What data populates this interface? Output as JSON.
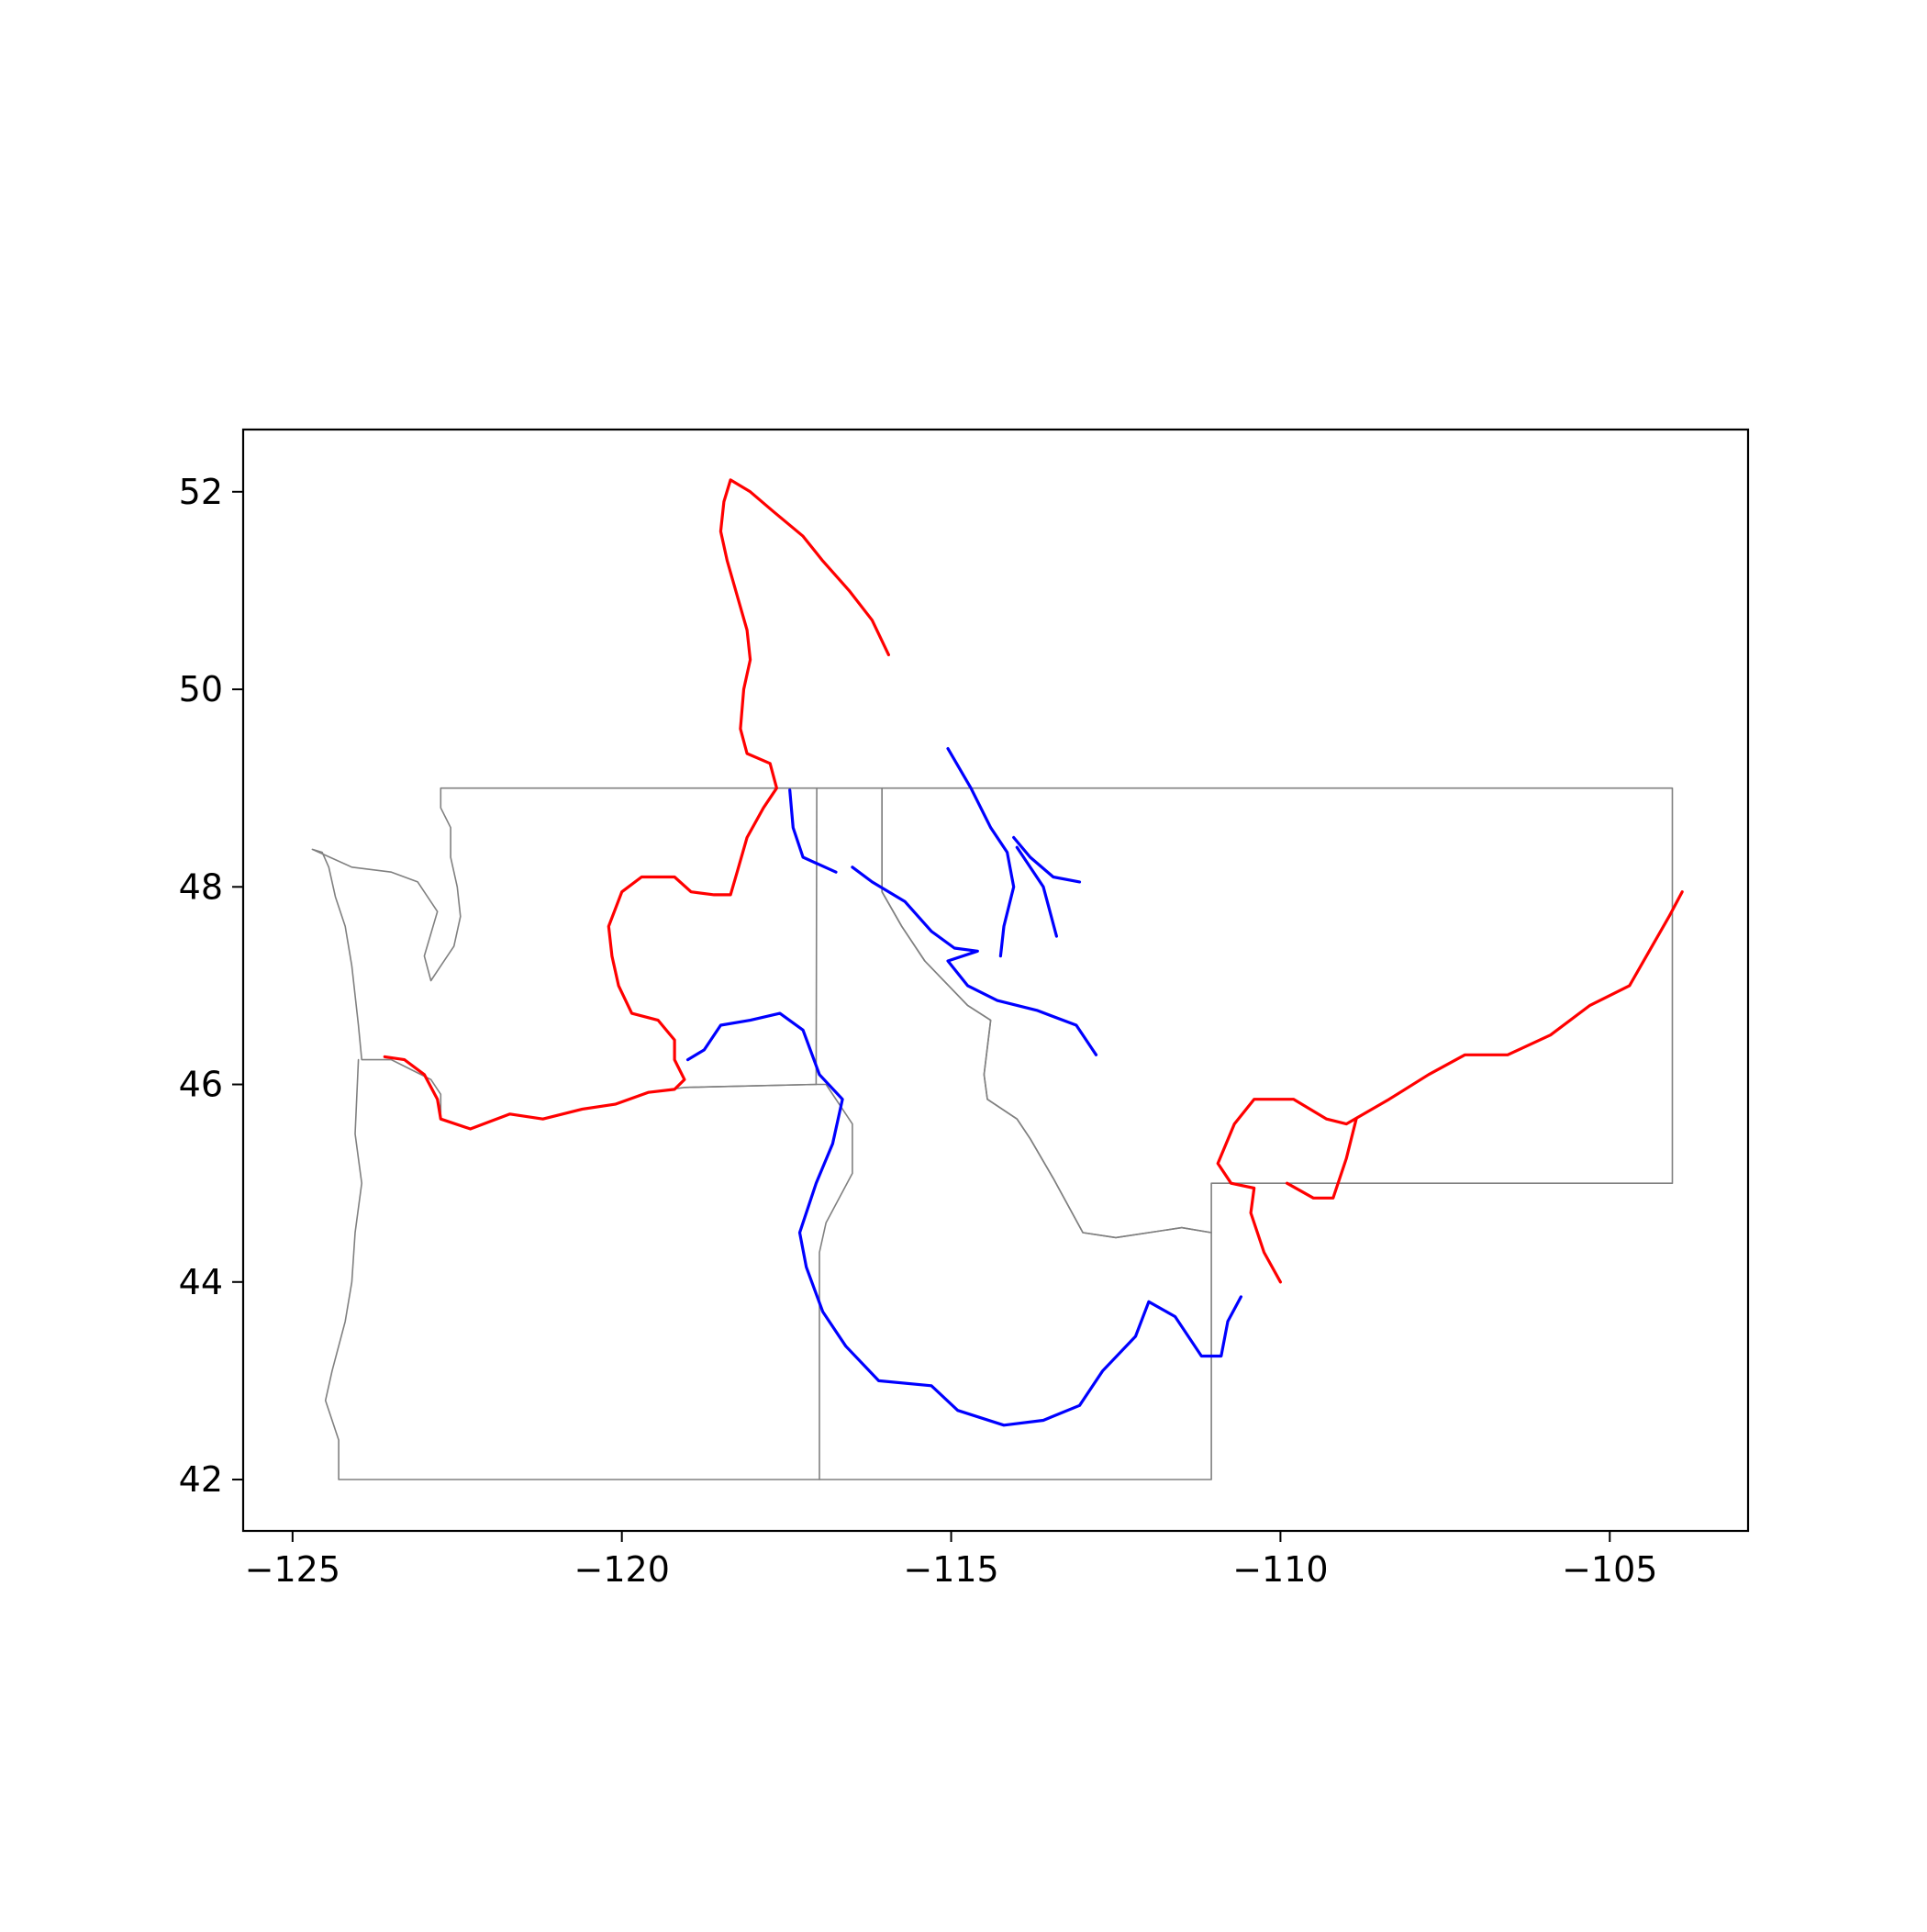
{
  "chart_data": {
    "type": "map",
    "title": "",
    "xlabel": "",
    "ylabel": "",
    "xlim": [
      -125.75,
      -102.9
    ],
    "ylim": [
      41.48,
      52.63
    ],
    "x_ticks": [
      {
        "value": -125,
        "label": "−125"
      },
      {
        "value": -120,
        "label": "−120"
      },
      {
        "value": -115,
        "label": "−115"
      },
      {
        "value": -110,
        "label": "−110"
      },
      {
        "value": -105,
        "label": "−105"
      }
    ],
    "y_ticks": [
      {
        "value": 42,
        "label": "42"
      },
      {
        "value": 44,
        "label": "44"
      },
      {
        "value": 46,
        "label": "46"
      },
      {
        "value": 48,
        "label": "48"
      },
      {
        "value": 50,
        "label": "50"
      },
      {
        "value": 52,
        "label": "52"
      }
    ],
    "grid": false,
    "colors": {
      "boundary": "#808080",
      "river_red": "#ff0000",
      "river_blue": "#0000ff",
      "axes": "#000000"
    },
    "boundaries": [
      {
        "name": "washington",
        "points": [
          [
            -124.7,
            48.38
          ],
          [
            -124.55,
            48.35
          ],
          [
            -124.45,
            48.2
          ],
          [
            -124.35,
            47.9
          ],
          [
            -124.2,
            47.6
          ],
          [
            -124.1,
            47.2
          ],
          [
            -124.05,
            46.9
          ],
          [
            -124.0,
            46.6
          ],
          [
            -123.95,
            46.25
          ],
          [
            -123.5,
            46.25
          ],
          [
            -123.2,
            46.15
          ],
          [
            -122.9,
            46.05
          ],
          [
            -122.75,
            45.9
          ],
          [
            -122.75,
            45.65
          ],
          [
            -122.3,
            45.55
          ],
          [
            -121.7,
            45.7
          ],
          [
            -121.2,
            45.65
          ],
          [
            -120.6,
            45.75
          ],
          [
            -120.1,
            45.8
          ],
          [
            -119.6,
            45.92
          ],
          [
            -119.05,
            45.97
          ],
          [
            -117.05,
            46.0
          ],
          [
            -117.04,
            49.0
          ],
          [
            -122.75,
            49.0
          ],
          [
            -122.75,
            48.8
          ],
          [
            -122.6,
            48.6
          ],
          [
            -122.6,
            48.3
          ],
          [
            -122.5,
            48.0
          ],
          [
            -122.45,
            47.7
          ],
          [
            -122.55,
            47.4
          ],
          [
            -122.75,
            47.2
          ],
          [
            -122.9,
            47.05
          ],
          [
            -123.0,
            47.3
          ],
          [
            -122.8,
            47.75
          ],
          [
            -123.1,
            48.05
          ],
          [
            -123.5,
            48.15
          ],
          [
            -124.1,
            48.2
          ],
          [
            -124.7,
            48.38
          ]
        ]
      },
      {
        "name": "oregon",
        "points": [
          [
            -124.0,
            46.25
          ],
          [
            -124.05,
            45.5
          ],
          [
            -123.95,
            45.0
          ],
          [
            -124.05,
            44.5
          ],
          [
            -124.1,
            44.0
          ],
          [
            -124.2,
            43.6
          ],
          [
            -124.4,
            43.1
          ],
          [
            -124.5,
            42.8
          ],
          [
            -124.3,
            42.4
          ],
          [
            -124.3,
            42.0
          ],
          [
            -117.0,
            42.0
          ],
          [
            -117.0,
            44.3
          ],
          [
            -116.9,
            44.6
          ],
          [
            -116.5,
            45.1
          ],
          [
            -116.5,
            45.6
          ],
          [
            -116.9,
            46.0
          ],
          [
            -117.05,
            46.0
          ]
        ]
      },
      {
        "name": "idaho",
        "points": [
          [
            -117.04,
            49.0
          ],
          [
            -116.05,
            49.0
          ],
          [
            -116.05,
            47.95
          ],
          [
            -115.75,
            47.6
          ],
          [
            -115.4,
            47.25
          ],
          [
            -114.75,
            46.8
          ],
          [
            -114.4,
            46.65
          ],
          [
            -114.5,
            46.1
          ],
          [
            -114.45,
            45.85
          ],
          [
            -114.0,
            45.65
          ],
          [
            -113.8,
            45.45
          ],
          [
            -113.45,
            45.05
          ],
          [
            -113.0,
            44.5
          ],
          [
            -112.5,
            44.45
          ],
          [
            -111.5,
            44.55
          ],
          [
            -111.05,
            44.5
          ],
          [
            -111.05,
            42.0
          ],
          [
            -117.0,
            42.0
          ]
        ]
      },
      {
        "name": "montana",
        "points": [
          [
            -116.05,
            49.0
          ],
          [
            -104.05,
            49.0
          ],
          [
            -104.05,
            45.0
          ],
          [
            -111.05,
            45.0
          ],
          [
            -111.05,
            44.5
          ],
          [
            -111.5,
            44.55
          ],
          [
            -112.5,
            44.45
          ],
          [
            -113.0,
            44.5
          ],
          [
            -113.45,
            45.05
          ],
          [
            -113.8,
            45.45
          ],
          [
            -114.0,
            45.65
          ],
          [
            -114.45,
            45.85
          ],
          [
            -114.5,
            46.1
          ],
          [
            -114.4,
            46.65
          ],
          [
            -114.75,
            46.8
          ],
          [
            -115.4,
            47.25
          ],
          [
            -115.75,
            47.6
          ],
          [
            -116.05,
            47.95
          ],
          [
            -116.05,
            49.0
          ]
        ]
      },
      {
        "name": "washington-oregon-border",
        "points": [
          [
            -119.05,
            45.97
          ],
          [
            -117.05,
            46.0
          ]
        ]
      }
    ],
    "series": [
      {
        "color": "#ff0000",
        "points": [
          [
            -123.6,
            46.28
          ],
          [
            -123.3,
            46.25
          ],
          [
            -123.0,
            46.1
          ],
          [
            -122.8,
            45.85
          ],
          [
            -122.75,
            45.65
          ],
          [
            -122.3,
            45.55
          ],
          [
            -121.7,
            45.7
          ],
          [
            -121.2,
            45.65
          ],
          [
            -120.6,
            45.75
          ],
          [
            -120.1,
            45.8
          ],
          [
            -119.6,
            45.92
          ],
          [
            -119.2,
            45.95
          ],
          [
            -119.05,
            46.05
          ],
          [
            -119.2,
            46.25
          ],
          [
            -119.2,
            46.45
          ],
          [
            -119.45,
            46.65
          ],
          [
            -119.85,
            46.72
          ],
          [
            -120.05,
            47.0
          ],
          [
            -120.15,
            47.3
          ],
          [
            -120.2,
            47.6
          ],
          [
            -120.0,
            47.95
          ],
          [
            -119.7,
            48.1
          ],
          [
            -119.2,
            48.1
          ],
          [
            -118.95,
            47.95
          ],
          [
            -118.6,
            47.92
          ],
          [
            -118.35,
            47.92
          ],
          [
            -118.25,
            48.15
          ],
          [
            -118.1,
            48.5
          ],
          [
            -117.85,
            48.8
          ],
          [
            -117.65,
            49.0
          ],
          [
            -117.75,
            49.25
          ],
          [
            -118.1,
            49.35
          ],
          [
            -118.2,
            49.6
          ],
          [
            -118.15,
            50.0
          ],
          [
            -118.05,
            50.3
          ],
          [
            -118.1,
            50.6
          ],
          [
            -118.25,
            50.95
          ],
          [
            -118.4,
            51.3
          ],
          [
            -118.5,
            51.6
          ],
          [
            -118.45,
            51.9
          ],
          [
            -118.35,
            52.12
          ],
          [
            -118.05,
            52.0
          ],
          [
            -117.7,
            51.8
          ],
          [
            -117.25,
            51.55
          ],
          [
            -116.95,
            51.3
          ],
          [
            -116.55,
            51.0
          ],
          [
            -116.2,
            50.7
          ],
          [
            -115.95,
            50.35
          ]
        ]
      },
      {
        "color": "#ff0000",
        "points": [
          [
            -103.9,
            47.95
          ],
          [
            -104.1,
            47.7
          ],
          [
            -104.4,
            47.35
          ],
          [
            -104.7,
            47.0
          ],
          [
            -105.3,
            46.8
          ],
          [
            -105.9,
            46.5
          ],
          [
            -106.55,
            46.3
          ],
          [
            -107.2,
            46.3
          ],
          [
            -107.75,
            46.1
          ],
          [
            -108.35,
            45.85
          ],
          [
            -109.0,
            45.6
          ],
          [
            -109.3,
            45.65
          ],
          [
            -109.8,
            45.85
          ],
          [
            -110.4,
            45.85
          ],
          [
            -110.7,
            45.6
          ],
          [
            -110.95,
            45.2
          ],
          [
            -110.75,
            45.0
          ],
          [
            -110.4,
            44.95
          ],
          [
            -110.45,
            44.7
          ],
          [
            -110.25,
            44.3
          ],
          [
            -110.0,
            44.0
          ]
        ]
      },
      {
        "color": "#ff0000",
        "points": [
          [
            -108.85,
            45.65
          ],
          [
            -109.0,
            45.25
          ],
          [
            -109.2,
            44.85
          ],
          [
            -109.5,
            44.85
          ],
          [
            -109.9,
            45.0
          ]
        ]
      },
      {
        "color": "#0000ff",
        "points": [
          [
            -119.0,
            46.25
          ],
          [
            -118.75,
            46.35
          ],
          [
            -118.5,
            46.6
          ],
          [
            -118.05,
            46.65
          ],
          [
            -117.6,
            46.72
          ],
          [
            -117.25,
            46.55
          ],
          [
            -117.0,
            46.1
          ],
          [
            -116.65,
            45.85
          ],
          [
            -116.8,
            45.4
          ],
          [
            -117.05,
            45.0
          ],
          [
            -117.3,
            44.5
          ],
          [
            -117.2,
            44.15
          ],
          [
            -116.95,
            43.7
          ],
          [
            -116.6,
            43.35
          ],
          [
            -116.1,
            43.0
          ],
          [
            -115.3,
            42.95
          ],
          [
            -114.9,
            42.7
          ],
          [
            -114.2,
            42.55
          ],
          [
            -113.6,
            42.6
          ],
          [
            -113.05,
            42.75
          ],
          [
            -112.7,
            43.1
          ],
          [
            -112.2,
            43.45
          ],
          [
            -112.0,
            43.8
          ],
          [
            -111.6,
            43.65
          ],
          [
            -111.2,
            43.25
          ],
          [
            -110.9,
            43.25
          ],
          [
            -110.8,
            43.6
          ],
          [
            -110.6,
            43.85
          ]
        ]
      },
      {
        "color": "#0000ff",
        "points": [
          [
            -117.45,
            48.98
          ],
          [
            -117.4,
            48.6
          ],
          [
            -117.25,
            48.3
          ],
          [
            -116.75,
            48.15
          ]
        ]
      },
      {
        "color": "#0000ff",
        "points": [
          [
            -116.5,
            48.2
          ],
          [
            -116.2,
            48.05
          ],
          [
            -115.7,
            47.85
          ],
          [
            -115.3,
            47.55
          ],
          [
            -114.95,
            47.38
          ],
          [
            -114.6,
            47.35
          ],
          [
            -115.05,
            47.25
          ],
          [
            -114.75,
            47.0
          ],
          [
            -114.3,
            46.85
          ],
          [
            -113.7,
            46.75
          ],
          [
            -113.1,
            46.6
          ],
          [
            -112.8,
            46.3
          ]
        ]
      },
      {
        "color": "#0000ff",
        "points": [
          [
            -115.05,
            49.4
          ],
          [
            -114.7,
            49.0
          ],
          [
            -114.4,
            48.6
          ],
          [
            -114.15,
            48.35
          ],
          [
            -114.05,
            48.0
          ],
          [
            -114.2,
            47.6
          ],
          [
            -114.25,
            47.3
          ]
        ]
      },
      {
        "color": "#0000ff",
        "points": [
          [
            -114.05,
            48.5
          ],
          [
            -113.8,
            48.3
          ],
          [
            -113.45,
            48.1
          ],
          [
            -113.05,
            48.05
          ]
        ]
      },
      {
        "color": "#0000ff",
        "points": [
          [
            -114.0,
            48.4
          ],
          [
            -113.6,
            48.0
          ],
          [
            -113.4,
            47.5
          ]
        ]
      }
    ]
  }
}
